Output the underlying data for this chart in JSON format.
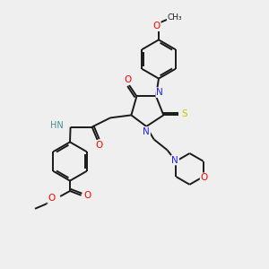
{
  "bg_color": "#efefef",
  "bond_color": "#1a1a1a",
  "atom_colors": {
    "N": "#2020ff",
    "O": "#ff0000",
    "S": "#c8c800",
    "C": "#1a1a1a",
    "H": "#4a9090"
  },
  "fig_width": 3.0,
  "fig_height": 3.0,
  "dpi": 100
}
